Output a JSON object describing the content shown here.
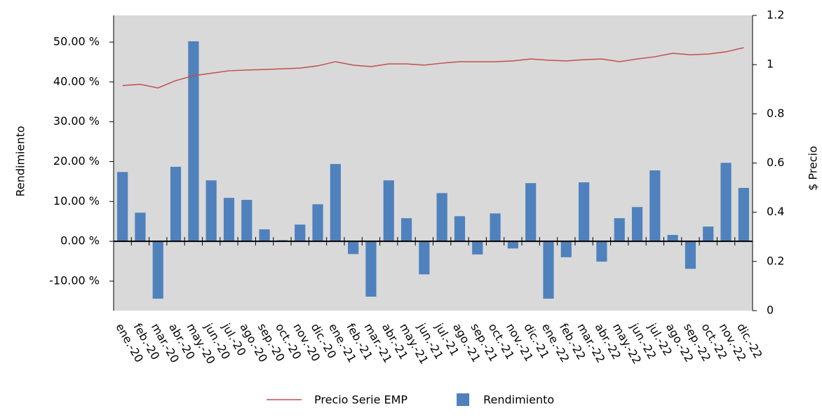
{
  "chart_data": {
    "type": "bar-line",
    "y_label": "Rendimiento",
    "y2_label": "$ Precio",
    "categories": [
      "ene.-20",
      "feb.-20",
      "mar.-20",
      "abr.-20",
      "may.-20",
      "jun.-20",
      "jul.-20",
      "ago.-20",
      "sep.-20",
      "oct.-20",
      "nov.-20",
      "dic.-20",
      "ene.-21",
      "feb.-21",
      "mar.-21",
      "abr.-21",
      "may.-21",
      "jun.-21",
      "jul.-21",
      "ago.-21",
      "sep.-21",
      "oct.-21",
      "nov.-21",
      "dic.-21",
      "ene.-22",
      "feb.-22",
      "mar.-22",
      "abr.-22",
      "may.-22",
      "jun.-22",
      "jul.-22",
      "ago.-22",
      "sep.-22",
      "oct.-22",
      "nov.-22",
      "dic.-22"
    ],
    "series": [
      {
        "name": "Precio Serie EMP",
        "type": "line",
        "axis": "y2",
        "color": "#c0504d",
        "values": [
          0.915,
          0.92,
          0.905,
          0.935,
          0.955,
          0.965,
          0.975,
          0.978,
          0.98,
          0.983,
          0.986,
          0.995,
          1.012,
          0.998,
          0.992,
          1.003,
          1.003,
          0.998,
          1.006,
          1.012,
          1.012,
          1.012,
          1.015,
          1.023,
          1.018,
          1.015,
          1.02,
          1.023,
          1.012,
          1.023,
          1.032,
          1.046,
          1.04,
          1.043,
          1.052,
          1.069
        ]
      },
      {
        "name": "Rendimiento",
        "type": "bar",
        "axis": "y",
        "color": "#4f81bd",
        "values": [
          17.4,
          7.2,
          -14.4,
          18.7,
          50.2,
          15.3,
          10.9,
          10.4,
          3.0,
          0.3,
          4.2,
          9.3,
          19.4,
          -3.2,
          -13.9,
          15.3,
          5.8,
          -8.3,
          12.1,
          6.3,
          -3.3,
          7.0,
          -1.8,
          14.6,
          -14.4,
          -4.0,
          14.8,
          -5.1,
          5.8,
          8.6,
          17.8,
          1.6,
          -6.9,
          3.7,
          19.7,
          13.4
        ]
      }
    ],
    "ylim": [
      -17.4,
      56.7
    ],
    "yticks": [
      {
        "value": -10,
        "label": "-10.00 %"
      },
      {
        "value": 0,
        "label": "0.00 %"
      },
      {
        "value": 10,
        "label": "10.00 %"
      },
      {
        "value": 20,
        "label": "20.00 %"
      },
      {
        "value": 30,
        "label": "30.00 %"
      },
      {
        "value": 40,
        "label": "40.00 %"
      },
      {
        "value": 50,
        "label": "50.00 %"
      }
    ],
    "y2lim": [
      0,
      1.2
    ],
    "y2ticks": [
      0,
      0.2,
      0.4,
      0.6,
      0.8,
      1,
      1.2
    ],
    "plot_background": "#d9d9d9",
    "legend": "bottom"
  }
}
